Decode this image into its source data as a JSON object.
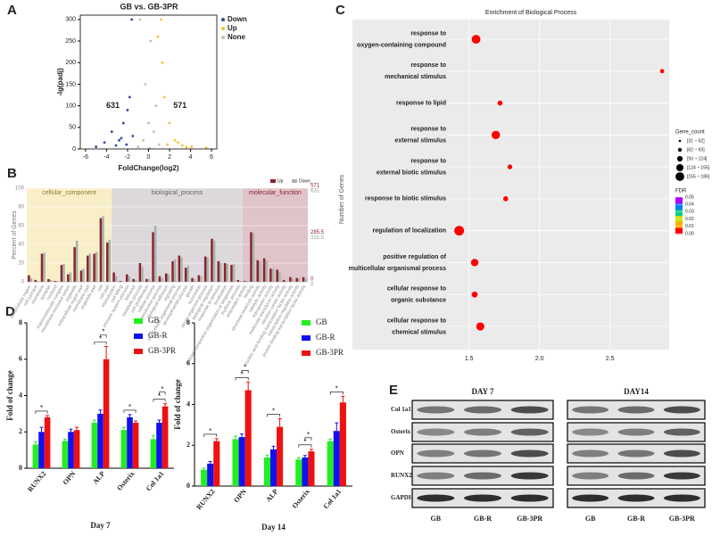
{
  "panel_labels": [
    "A",
    "B",
    "C",
    "D",
    "E"
  ],
  "chart_data": [
    {
      "type": "scatter",
      "title": "GB vs. GB-3PR",
      "xlabel": "FoldChange(log2)",
      "ylabel": "-lg(padj)",
      "xlim": [
        -6.5,
        6.5
      ],
      "ylim": [
        0,
        310
      ],
      "xticks": [
        -6,
        -4,
        -2,
        0,
        2,
        4,
        6
      ],
      "yticks": [
        0,
        50,
        100,
        150,
        200,
        250,
        300
      ],
      "annotations": [
        "631",
        "571"
      ],
      "series": [
        {
          "name": "Down",
          "color": "#2c4a9a",
          "x": [
            -2.1,
            -2.8,
            -3.5,
            -1.6,
            -4.2,
            -2.4,
            -1.8,
            -3.1,
            -5.0,
            -2.0,
            -1.5,
            -2.6
          ],
          "values": [
            10,
            20,
            40,
            300,
            15,
            60,
            120,
            8,
            5,
            90,
            30,
            25
          ]
        },
        {
          "name": "Up",
          "color": "#f2c53a",
          "x": [
            1.8,
            2.5,
            3.2,
            4.1,
            1.2,
            2.0,
            5.5,
            1.5,
            2.8,
            3.6,
            1.3,
            0.9
          ],
          "values": [
            10,
            20,
            8,
            5,
            300,
            60,
            3,
            120,
            15,
            4,
            200,
            260
          ]
        },
        {
          "name": "None",
          "color": "#c8bfa8",
          "x": [
            -1,
            -0.5,
            0,
            0.5,
            1,
            -0.3,
            0.2,
            -0.8,
            0.7,
            0.1
          ],
          "values": [
            5,
            20,
            60,
            40,
            10,
            150,
            250,
            300,
            100,
            2
          ]
        }
      ]
    },
    {
      "type": "grouped_bar",
      "ylabel": "Percent of Genes",
      "y2label": "Number of Genes",
      "ylim": [
        0,
        100
      ],
      "yticks": [
        0,
        20,
        40,
        60,
        80,
        100
      ],
      "y2lim_up": [
        0,
        571
      ],
      "y2ticks_up": [
        0,
        285.5,
        571
      ],
      "y2lim_down": [
        0,
        631
      ],
      "y2ticks_down": [
        0,
        315.5,
        631
      ],
      "groups": [
        {
          "name": "cellular_component",
          "color": "#f8efc8",
          "text_color": "#8a7a30",
          "categories": [
            "extracellular region",
            "cell junction",
            "membrane",
            "synapse",
            "nucleoid",
            "macromolecular complex",
            "membrane-enclosed lumen",
            "organelle",
            "extracellular region part",
            "membrane part",
            "organelle part",
            "cell",
            "cell part"
          ]
        },
        {
          "name": "biological_process",
          "color": "#dcd8dc",
          "text_color": "#666666",
          "categories": [
            "reproduction",
            "cell killing",
            "immune system process",
            "behavior",
            "metabolic process",
            "cell proliferation",
            "cellular process",
            "reproductive process",
            "biological adhesion",
            "signaling",
            "multicellular organismal process",
            "developmental process",
            "growth",
            "locomotion",
            "single-organism process",
            "biological regulation",
            "response to stimulus",
            "localization",
            "cellular component organization or biogenesis",
            "rhythmic process"
          ]
        },
        {
          "name": "molecular_function",
          "color": "#dfc4ca",
          "text_color": "#8b2332",
          "categories": [
            "antioxidant activity",
            "binding",
            "structural molecule activity",
            "catalytic activity",
            "transporter activity",
            "molecular transducer activity",
            "electron carrier activity",
            "nucleic acid binding transcription factor activity",
            "transcription regulator activity",
            "protein binding transcription factor activity"
          ]
        }
      ],
      "series": [
        {
          "name": "Up",
          "color": "#8b2332",
          "values": [
            7,
            2,
            30,
            3,
            1,
            18,
            8,
            37,
            12,
            28,
            30,
            68,
            42,
            10,
            1,
            8,
            3,
            20,
            3,
            53,
            6,
            9,
            22,
            28,
            15,
            4,
            7,
            27,
            46,
            22,
            20,
            18,
            2,
            1,
            53,
            23,
            25,
            14,
            13,
            2,
            5,
            4,
            5
          ]
        },
        {
          "name": "Down",
          "color": "#a8b5a8",
          "values": [
            4,
            1,
            31,
            2,
            1,
            19,
            10,
            44,
            14,
            30,
            32,
            70,
            45,
            6,
            0,
            6,
            2,
            16,
            3,
            60,
            4,
            8,
            24,
            26,
            17,
            3,
            6,
            26,
            44,
            20,
            19,
            19,
            1,
            1,
            52,
            22,
            23,
            14,
            10,
            1,
            3,
            4,
            3
          ]
        }
      ]
    },
    {
      "type": "bubble",
      "title": "Enrichment of Biological Process",
      "categories": [
        [
          "response to",
          "oxygen-containing compound"
        ],
        [
          "response to",
          "mechanical stimulus"
        ],
        [
          "response to lipid"
        ],
        [
          "response to",
          "external stimulus"
        ],
        [
          "response to",
          "external biotic stimulus"
        ],
        [
          "response to biotic stimulus"
        ],
        [
          "regulation of localization"
        ],
        [
          "positive regulation of",
          "multicellular organismal process"
        ],
        [
          "cellular response to",
          "organic substance"
        ],
        [
          "cellular response to",
          "chemical stimulus"
        ]
      ],
      "values": [
        1.55,
        2.87,
        1.72,
        1.69,
        1.79,
        1.76,
        1.43,
        1.54,
        1.54,
        1.58
      ],
      "sizes": [
        150,
        35,
        50,
        140,
        45,
        50,
        186,
        110,
        70,
        130
      ],
      "fdr": [
        0.001,
        0.004,
        0.002,
        0.001,
        0.002,
        0.002,
        0,
        0.001,
        0.001,
        0
      ],
      "xlim": [
        1.35,
        2.92
      ],
      "xticks": [
        1.5,
        {
          "value": 2,
          "label": "2.0"
        },
        2.5
      ],
      "size_legend_title": "Gene_count",
      "size_legend": [
        "[31 ~ 62]",
        "[62 ~ 93]",
        "[93 ~ 124]",
        "[124 ~ 155]",
        "[155 ~ 186]"
      ],
      "color_legend_title": "FDR",
      "color_lim": [
        0,
        0.05
      ],
      "color_ticks": [
        {
          "value": 0.05,
          "label": "0.05"
        },
        {
          "value": 0.04,
          "label": "0.04"
        },
        {
          "value": 0.03,
          "label": "0.03"
        },
        {
          "value": 0.02,
          "label": "0.02"
        },
        {
          "value": 0.01,
          "label": "0.01"
        },
        {
          "value": 0,
          "label": "0.00"
        }
      ]
    },
    {
      "type": "bar",
      "xlabel": "Day 7",
      "ylabel": "Fold of change",
      "ylim": [
        0,
        8
      ],
      "yticks": [
        0,
        2,
        4,
        6,
        8
      ],
      "categories": [
        "RUNX2",
        "OPN",
        "ALP",
        "Osterix",
        "Col 1a1"
      ],
      "series": [
        {
          "name": "GB",
          "color": "#22ee22",
          "values": [
            1.3,
            1.5,
            2.5,
            2.1,
            1.6
          ],
          "errors": [
            0.15,
            0.1,
            0.15,
            0.15,
            0.2
          ]
        },
        {
          "name": "GB-R",
          "color": "#1111ee",
          "values": [
            2.0,
            2.0,
            3.0,
            2.8,
            2.5
          ],
          "errors": [
            0.25,
            0.15,
            0.2,
            0.15,
            0.15
          ]
        },
        {
          "name": "GB-3PR",
          "color": "#ee1111",
          "values": [
            2.8,
            2.1,
            6.0,
            2.5,
            3.4
          ],
          "errors": [
            0.1,
            0.15,
            0.7,
            0.1,
            0.15
          ]
        }
      ],
      "annotations": [
        {
          "text": "*",
          "category": "RUNX2"
        },
        {
          "text": "*",
          "category": "ALP"
        },
        {
          "text": "*",
          "category": "ALP"
        },
        {
          "text": "*",
          "category": "Osterix"
        },
        {
          "text": "*",
          "category": "Col 1a1"
        },
        {
          "text": "*",
          "category": "Col 1a1"
        }
      ]
    },
    {
      "type": "bar",
      "xlabel": "Day 14",
      "ylabel": "Fold of change",
      "ylim": [
        0,
        8
      ],
      "yticks": [
        0,
        2,
        4,
        6,
        8
      ],
      "categories": [
        "RUNX2",
        "OPN",
        "ALP",
        "Osterix",
        "Col 1a1"
      ],
      "series": [
        {
          "name": "GB",
          "color": "#22ee22",
          "values": [
            0.8,
            2.3,
            1.4,
            1.3,
            2.2
          ],
          "errors": [
            0.08,
            0.15,
            0.12,
            0.1,
            0.1
          ]
        },
        {
          "name": "GB-R",
          "color": "#1111ee",
          "values": [
            1.1,
            2.4,
            1.8,
            1.4,
            2.7
          ],
          "errors": [
            0.1,
            0.15,
            0.15,
            0.1,
            0.4
          ]
        },
        {
          "name": "GB-3PR",
          "color": "#ee1111",
          "values": [
            2.2,
            4.7,
            2.9,
            1.7,
            4.1
          ],
          "errors": [
            0.12,
            0.4,
            0.4,
            0.1,
            0.3
          ]
        }
      ],
      "annotations": [
        {
          "text": "*",
          "category": "RUNX2"
        },
        {
          "text": "*",
          "category": "OPN"
        },
        {
          "text": "*",
          "category": "OPN"
        },
        {
          "text": "*",
          "category": "ALP"
        },
        {
          "text": "*",
          "category": "Osterix"
        },
        {
          "text": "*",
          "category": "Osterix"
        },
        {
          "text": "*",
          "category": "Col 1a1"
        }
      ]
    }
  ],
  "blot": {
    "days": [
      "DAY 7",
      "DAY14"
    ],
    "rows": [
      "Col 1a1",
      "Osterix",
      "OPN",
      "RUNX2",
      "GAPDH"
    ],
    "lanes": [
      "GB",
      "GB-R",
      "GB-3PR",
      "GB",
      "GB-R",
      "GB-3PR"
    ]
  }
}
